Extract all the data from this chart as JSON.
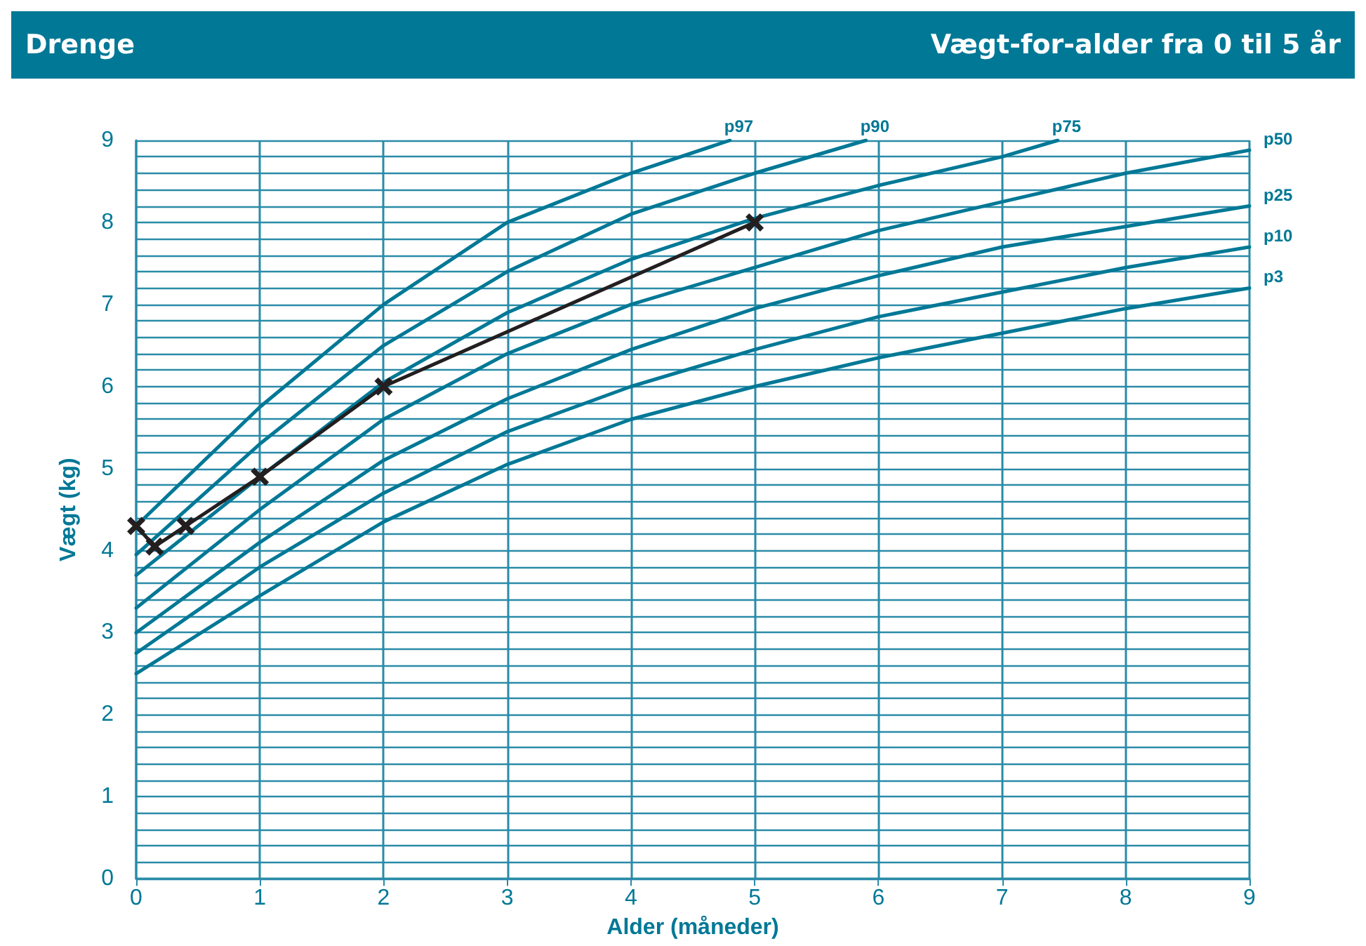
{
  "chart_data": {
    "type": "line",
    "title": "Vægt-for-alder fra 0 til 5 år",
    "subtitle": "Drenge",
    "xlabel": "Alder (måneder)",
    "ylabel": "Vægt (kg)",
    "xlim": [
      0,
      9
    ],
    "xticks": [
      0,
      1,
      2,
      3,
      4,
      5,
      6,
      7,
      8,
      9
    ],
    "ylim": [
      0,
      9
    ],
    "yticks": [
      0,
      {
        "value": 0.2,
        "label": null
      },
      {
        "value": 0.4,
        "label": null
      },
      {
        "value": 0.6,
        "label": null
      },
      {
        "value": 0.8,
        "label": null
      },
      1,
      {
        "value": 1.2,
        "label": null
      },
      {
        "value": 1.4,
        "label": null
      },
      {
        "value": 1.6,
        "label": null
      },
      {
        "value": 1.8,
        "label": null
      },
      2,
      {
        "value": 2.2,
        "label": null
      },
      {
        "value": 2.4,
        "label": null
      },
      {
        "value": 2.6,
        "label": null
      },
      {
        "value": 2.8,
        "label": null
      },
      3,
      {
        "value": 3.2,
        "label": null
      },
      {
        "value": 3.4,
        "label": null
      },
      {
        "value": 3.6,
        "label": null
      },
      {
        "value": 3.8,
        "label": null
      },
      4,
      {
        "value": 4.2,
        "label": null
      },
      {
        "value": 4.4,
        "label": null
      },
      {
        "value": 4.6,
        "label": null
      },
      {
        "value": 4.8,
        "label": null
      },
      5,
      {
        "value": 5.2,
        "label": null
      },
      {
        "value": 5.4,
        "label": null
      },
      {
        "value": 5.6,
        "label": null
      },
      {
        "value": 5.8,
        "label": null
      },
      6,
      {
        "value": 6.2,
        "label": null
      },
      {
        "value": 6.4,
        "label": null
      },
      {
        "value": 6.6,
        "label": null
      },
      {
        "value": 6.8,
        "label": null
      },
      7,
      {
        "value": 7.2,
        "label": null
      },
      {
        "value": 7.4,
        "label": null
      },
      {
        "value": 7.6,
        "label": null
      },
      {
        "value": 7.8,
        "label": null
      },
      8,
      {
        "value": 8.2,
        "label": null
      },
      {
        "value": 8.4,
        "label": null
      },
      {
        "value": 8.6,
        "label": null
      },
      {
        "value": 8.8,
        "label": null
      },
      9
    ],
    "grid": true,
    "legend": false,
    "marker": "none",
    "line_style": "solid",
    "series": [
      {
        "name": "p97",
        "color": "#007896",
        "x": [
          0,
          1,
          2,
          3,
          4,
          4.8
        ],
        "values": [
          4.3,
          5.75,
          7.0,
          8.0,
          8.6,
          9.0
        ]
      },
      {
        "name": "p90",
        "color": "#007896",
        "x": [
          0,
          1,
          2,
          3,
          4,
          5,
          5.9
        ],
        "values": [
          3.95,
          5.3,
          6.5,
          7.4,
          8.1,
          8.6,
          9.0
        ]
      },
      {
        "name": "p75",
        "color": "#007896",
        "x": [
          0,
          1,
          2,
          3,
          4,
          5,
          6,
          7,
          7.45
        ],
        "values": [
          3.7,
          4.9,
          6.05,
          6.9,
          7.55,
          8.05,
          8.45,
          8.8,
          9.0
        ]
      },
      {
        "name": "p50",
        "color": "#007896",
        "x": [
          0,
          1,
          2,
          3,
          4,
          5,
          6,
          7,
          8,
          9
        ],
        "values": [
          3.3,
          4.5,
          5.6,
          6.4,
          7.0,
          7.45,
          7.9,
          8.25,
          8.6,
          8.88
        ]
      },
      {
        "name": "p25",
        "color": "#007896",
        "x": [
          0,
          1,
          2,
          3,
          4,
          5,
          6,
          7,
          8,
          9
        ],
        "values": [
          3.0,
          4.1,
          5.1,
          5.85,
          6.45,
          6.95,
          7.35,
          7.7,
          7.95,
          8.2
        ]
      },
      {
        "name": "p10",
        "color": "#007896",
        "x": [
          0,
          1,
          2,
          3,
          4,
          5,
          6,
          7,
          8,
          9
        ],
        "values": [
          2.75,
          3.8,
          4.7,
          5.45,
          6.0,
          6.45,
          6.85,
          7.15,
          7.45,
          7.7
        ]
      },
      {
        "name": "p3",
        "color": "#007896",
        "x": [
          0,
          1,
          2,
          3,
          4,
          5,
          6,
          7,
          8,
          9
        ],
        "values": [
          2.5,
          3.45,
          4.35,
          5.05,
          5.6,
          6.0,
          6.35,
          6.65,
          6.95,
          7.2
        ]
      },
      {
        "color": "#231f20",
        "marker": "cross",
        "x": [
          0,
          0.15,
          0.4,
          1,
          2,
          5
        ],
        "values": [
          4.3,
          4.05,
          4.3,
          4.9,
          6.0,
          8.0
        ]
      }
    ]
  }
}
